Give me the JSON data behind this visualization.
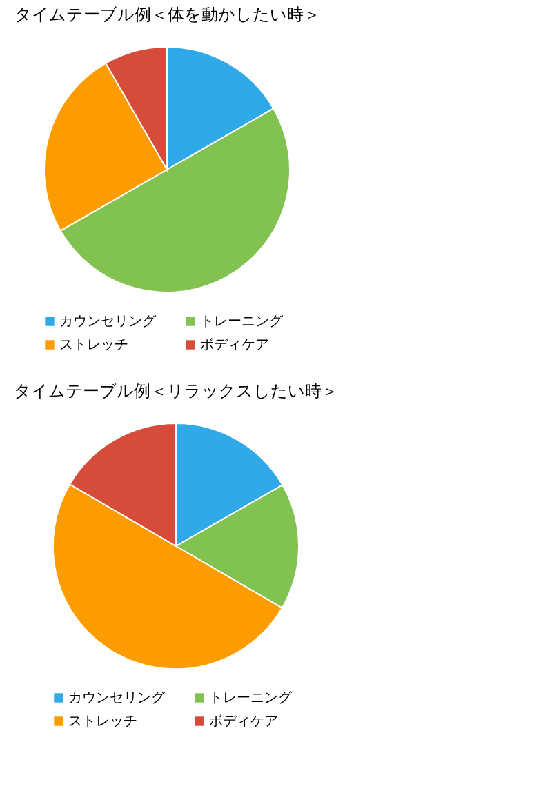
{
  "chart_data": [
    {
      "type": "pie",
      "title": "タイムテーブル例＜体を動かしたい時＞",
      "categories": [
        "カウンセリング",
        "トレーニング",
        "ストレッチ",
        "ボディケア"
      ],
      "values": [
        16.7,
        50,
        25,
        8.3
      ],
      "colors": [
        "#30a9e9",
        "#82c250",
        "#fd9c00",
        "#d64c3b"
      ],
      "legend": "bottom"
    },
    {
      "type": "pie",
      "title": "タイムテーブル例＜リラックスしたい時＞",
      "categories": [
        "カウンセリング",
        "トレーニング",
        "ストレッチ",
        "ボディケア"
      ],
      "values": [
        16.7,
        16.7,
        50,
        16.6
      ],
      "colors": [
        "#30a9e9",
        "#82c250",
        "#fd9c00",
        "#d64c3b"
      ],
      "legend": "bottom"
    }
  ]
}
